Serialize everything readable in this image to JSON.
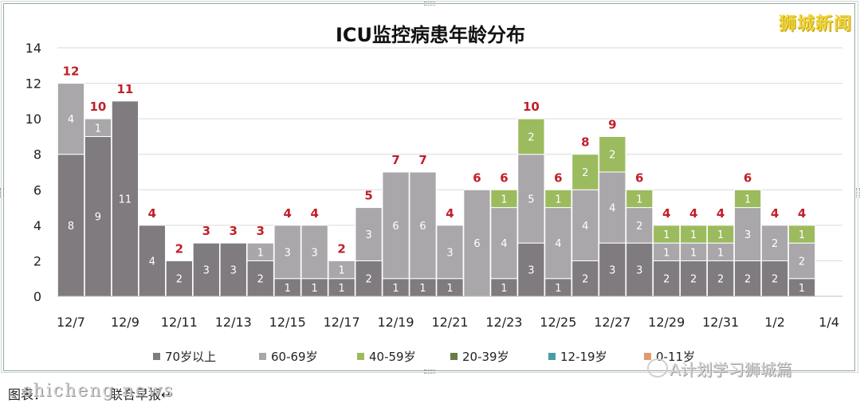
{
  "brand_text": "狮城新闻",
  "watermark_text": "A计划学习狮城篇",
  "caption_text": "图表：",
  "caption_tail": "联合早报↵",
  "site_watermark": "shicheng.news",
  "chart_data": {
    "type": "bar",
    "stacked": true,
    "title": "ICU监控病患年龄分布",
    "xlabel": "",
    "ylabel": "",
    "ylim": [
      0,
      14
    ],
    "yticks": [
      0,
      2,
      4,
      6,
      8,
      10,
      12,
      14
    ],
    "grid": true,
    "legend_position": "bottom",
    "categories": [
      "12/7",
      "12/8",
      "12/9",
      "12/10",
      "12/11",
      "12/12",
      "12/13",
      "12/14",
      "12/15",
      "12/16",
      "12/17",
      "12/18",
      "12/19",
      "12/20",
      "12/21",
      "12/22",
      "12/23",
      "12/24",
      "12/25",
      "12/26",
      "12/27",
      "12/28",
      "12/29",
      "12/30",
      "12/31",
      "1/1",
      "1/2",
      "1/3",
      "1/4"
    ],
    "tick_labels": [
      "12/7",
      "12/9",
      "12/11",
      "12/13",
      "12/15",
      "12/17",
      "12/19",
      "12/21",
      "12/23",
      "12/25",
      "12/27",
      "12/29",
      "12/31",
      "1/2",
      "1/4"
    ],
    "series": [
      {
        "name": "70岁以上",
        "color": "#7f7b7e",
        "values": [
          8,
          9,
          11,
          4,
          2,
          3,
          3,
          2,
          1,
          1,
          1,
          2,
          1,
          1,
          1,
          0,
          1,
          3,
          1,
          2,
          3,
          3,
          2,
          2,
          2,
          2,
          2,
          1,
          0
        ]
      },
      {
        "name": "60-69岁",
        "color": "#aaa7ab",
        "values": [
          4,
          1,
          0,
          0,
          0,
          0,
          0,
          1,
          3,
          3,
          1,
          3,
          6,
          6,
          3,
          6,
          4,
          5,
          4,
          4,
          4,
          2,
          1,
          1,
          1,
          3,
          2,
          2,
          0
        ]
      },
      {
        "name": "40-59岁",
        "color": "#9cbb5e",
        "values": [
          0,
          0,
          0,
          0,
          0,
          0,
          0,
          0,
          0,
          0,
          0,
          0,
          0,
          0,
          0,
          0,
          1,
          2,
          1,
          2,
          2,
          1,
          1,
          1,
          1,
          1,
          0,
          1,
          0
        ]
      },
      {
        "name": "20-39岁",
        "color": "#6b7b45",
        "values": [
          0,
          0,
          0,
          0,
          0,
          0,
          0,
          0,
          0,
          0,
          0,
          0,
          0,
          0,
          0,
          0,
          0,
          0,
          0,
          0,
          0,
          0,
          0,
          0,
          0,
          0,
          0,
          0,
          0
        ]
      },
      {
        "name": "12-19岁",
        "color": "#4a9ba3",
        "values": [
          0,
          0,
          0,
          0,
          0,
          0,
          0,
          0,
          0,
          0,
          0,
          0,
          0,
          0,
          0,
          0,
          0,
          0,
          0,
          0,
          0,
          0,
          0,
          0,
          0,
          0,
          0,
          0,
          0
        ]
      },
      {
        "name": "0-11岁",
        "color": "#e39a6b",
        "values": [
          0,
          0,
          0,
          0,
          0,
          0,
          0,
          0,
          0,
          0,
          0,
          0,
          0,
          0,
          0,
          0,
          0,
          0,
          0,
          0,
          0,
          0,
          0,
          0,
          0,
          0,
          0,
          0,
          0
        ]
      }
    ],
    "totals": [
      12,
      10,
      11,
      4,
      2,
      3,
      3,
      3,
      4,
      4,
      2,
      5,
      7,
      7,
      4,
      6,
      6,
      10,
      6,
      8,
      9,
      6,
      4,
      4,
      4,
      6,
      4,
      4,
      null
    ],
    "total_label_color": "#c0202a"
  }
}
